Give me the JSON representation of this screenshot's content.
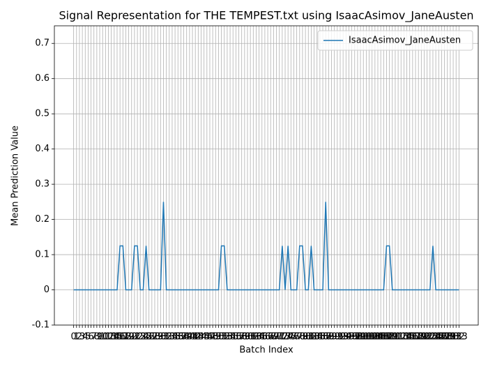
{
  "chart_data": {
    "type": "line",
    "title": "Signal Representation for THE TEMPEST.txt using IsaacAsimov_JaneAusten",
    "x_label": "Batch Index",
    "y_label": "Mean Prediction Value",
    "x": [
      0,
      1,
      2,
      3,
      4,
      5,
      6,
      7,
      8,
      9,
      10,
      11,
      12,
      13,
      14,
      15,
      16,
      17,
      18,
      19,
      20,
      21,
      22,
      23,
      24,
      25,
      26,
      27,
      28,
      29,
      30,
      31,
      32,
      33,
      34,
      35,
      36,
      37,
      38,
      39,
      40,
      41,
      42,
      43,
      44,
      45,
      46,
      47,
      48,
      49,
      50,
      51,
      52,
      53,
      54,
      55,
      56,
      57,
      58,
      59,
      60,
      61,
      62,
      63,
      64,
      65,
      66,
      67,
      68,
      69,
      70,
      71,
      72,
      73,
      74,
      75,
      76,
      77,
      78,
      79,
      80,
      81,
      82,
      83,
      84,
      85,
      86,
      87,
      88,
      89,
      90,
      91,
      92,
      93,
      94,
      95,
      96,
      97,
      98,
      99,
      100,
      101,
      102,
      103,
      104,
      105,
      106,
      107,
      108,
      109,
      110,
      111,
      112,
      113,
      114,
      115,
      116,
      117,
      118,
      119,
      120,
      121,
      122,
      123,
      124,
      125,
      126,
      127,
      128,
      129,
      130,
      131,
      132,
      133
    ],
    "series": [
      {
        "name": "IsaacAsimov_JaneAusten",
        "color": "#1f77b4",
        "values": [
          0,
          0,
          0,
          0,
          0,
          0,
          0,
          0,
          0,
          0,
          0,
          0,
          0,
          0,
          0,
          0,
          0.125,
          0.125,
          0,
          0,
          0,
          0.125,
          0.125,
          0,
          0,
          0.125,
          0,
          0,
          0,
          0,
          0,
          0.25,
          0,
          0,
          0,
          0,
          0,
          0,
          0,
          0,
          0,
          0,
          0,
          0,
          0,
          0,
          0,
          0,
          0,
          0,
          0,
          0.125,
          0.125,
          0,
          0,
          0,
          0,
          0,
          0,
          0,
          0,
          0,
          0,
          0,
          0,
          0,
          0,
          0,
          0,
          0,
          0,
          0,
          0.125,
          0,
          0.125,
          0,
          0,
          0,
          0.125,
          0.125,
          0,
          0,
          0.125,
          0,
          0,
          0,
          0,
          0.25,
          0,
          0,
          0,
          0,
          0,
          0,
          0,
          0,
          0,
          0,
          0,
          0,
          0,
          0,
          0,
          0,
          0,
          0,
          0,
          0,
          0.125,
          0.125,
          0,
          0,
          0,
          0,
          0,
          0,
          0,
          0,
          0,
          0,
          0,
          0,
          0,
          0,
          0.125,
          0,
          0,
          0,
          0,
          0,
          0,
          0,
          0,
          0
        ]
      }
    ],
    "xlim": [
      -6.65,
      139.65
    ],
    "xticks": [
      0,
      1,
      2,
      3,
      4,
      5,
      6,
      7,
      8,
      9,
      10,
      11,
      12,
      13,
      14,
      15,
      16,
      17,
      18,
      19,
      20,
      21,
      22,
      23,
      24,
      25,
      26,
      27,
      28,
      29,
      30,
      31,
      32,
      33,
      34,
      35,
      36,
      37,
      38,
      39,
      40,
      41,
      42,
      43,
      44,
      45,
      46,
      47,
      48,
      49,
      50,
      51,
      52,
      53,
      54,
      55,
      56,
      57,
      58,
      59,
      60,
      61,
      62,
      63,
      64,
      65,
      66,
      67,
      68,
      69,
      70,
      71,
      72,
      73,
      74,
      75,
      76,
      77,
      78,
      79,
      80,
      81,
      82,
      83,
      84,
      85,
      86,
      87,
      88,
      89,
      90,
      91,
      92,
      93,
      94,
      95,
      96,
      97,
      98,
      99,
      100,
      101,
      102,
      103,
      104,
      105,
      106,
      107,
      108,
      109,
      110,
      111,
      112,
      113,
      114,
      115,
      116,
      117,
      118,
      119,
      120,
      121,
      122,
      123,
      124,
      125,
      126,
      127,
      128,
      129,
      130,
      131,
      132,
      133
    ],
    "ylim": [
      -0.1,
      0.75
    ],
    "yticks": [
      -0.1,
      0,
      0.1,
      0.2,
      0.3,
      0.4,
      0.5,
      0.6,
      0.7
    ],
    "grid": true,
    "legend": "upper right"
  }
}
